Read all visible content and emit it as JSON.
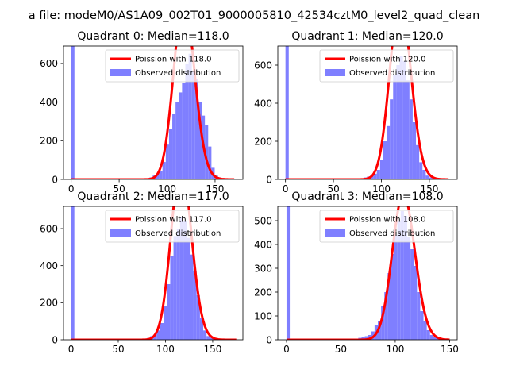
{
  "suptitle": "a file: modeM0/AS1A09_002T01_9000005810_42534cztM0_level2_quad_clean",
  "colors": {
    "poisson": "#ff0000",
    "observed": "#7f7fff",
    "axis": "#000000",
    "text": "#000000"
  },
  "chart_data": [
    {
      "type": "bar",
      "title": "Quadrant 0: Median=118.0",
      "xlim": [
        -8,
        179
      ],
      "ylim": [
        0,
        690
      ],
      "xticks": [
        0,
        50,
        100,
        150
      ],
      "yticks": [
        0,
        200,
        400,
        600
      ],
      "legend": {
        "placement": "top-right",
        "entries": [
          "Poission with 118.0",
          "Observed distribution"
        ]
      },
      "observed": {
        "name": "Observed distribution",
        "bin_start": 0,
        "bin_width": 3.4,
        "counts": [
          690,
          0,
          0,
          0,
          0,
          0,
          0,
          0,
          0,
          0,
          0,
          0,
          0,
          0,
          0,
          0,
          0,
          0,
          0,
          0,
          0,
          2,
          3,
          6,
          10,
          20,
          30,
          45,
          90,
          180,
          260,
          340,
          400,
          450,
          500,
          600,
          650,
          560,
          520,
          400,
          330,
          280,
          170,
          60,
          20,
          10,
          5,
          3,
          0,
          0
        ]
      },
      "poisson": {
        "name": "Poission with 118.0",
        "lambda": 118.0,
        "n": 7400,
        "bin_width": 3.4,
        "x_range": [
          0,
          170
        ]
      }
    },
    {
      "type": "bar",
      "title": "Quadrant 1: Median=120.0",
      "xlim": [
        -8,
        179
      ],
      "ylim": [
        0,
        700
      ],
      "xticks": [
        0,
        50,
        100,
        150
      ],
      "yticks": [
        0,
        200,
        400,
        600
      ],
      "legend": {
        "placement": "top-right",
        "entries": [
          "Poission with 120.0",
          "Observed distribution"
        ]
      },
      "observed": {
        "name": "Observed distribution",
        "bin_start": 0,
        "bin_width": 3.4,
        "counts": [
          700,
          0,
          0,
          0,
          0,
          0,
          0,
          0,
          0,
          0,
          0,
          0,
          0,
          0,
          0,
          0,
          0,
          0,
          0,
          0,
          0,
          0,
          3,
          5,
          10,
          15,
          20,
          30,
          50,
          100,
          200,
          280,
          420,
          550,
          600,
          650,
          620,
          520,
          420,
          300,
          180,
          90,
          50,
          20,
          10,
          5,
          2,
          0,
          0,
          0
        ]
      },
      "poisson": {
        "name": "Poission with 120.0",
        "lambda": 120.0,
        "n": 7600,
        "bin_width": 3.4,
        "x_range": [
          0,
          170
        ]
      }
    },
    {
      "type": "bar",
      "title": "Quadrant 2: Median=117.0",
      "xlim": [
        -8,
        182
      ],
      "ylim": [
        0,
        720
      ],
      "xticks": [
        0,
        50,
        100,
        150
      ],
      "yticks": [
        0,
        200,
        400,
        600
      ],
      "legend": {
        "placement": "top-right",
        "entries": [
          "Poission with 117.0",
          "Observed distribution"
        ]
      },
      "observed": {
        "name": "Observed distribution",
        "bin_start": 0,
        "bin_width": 3.5,
        "counts": [
          720,
          0,
          0,
          0,
          0,
          0,
          0,
          0,
          0,
          0,
          0,
          0,
          0,
          0,
          0,
          0,
          0,
          0,
          0,
          0,
          0,
          3,
          5,
          10,
          20,
          30,
          50,
          90,
          180,
          300,
          450,
          560,
          600,
          660,
          640,
          550,
          460,
          370,
          240,
          120,
          50,
          20,
          10,
          5,
          3,
          0,
          0,
          0,
          0,
          0
        ]
      },
      "poisson": {
        "name": "Poission with 117.0",
        "lambda": 117.0,
        "n": 7300,
        "bin_width": 3.5,
        "x_range": [
          0,
          175
        ]
      }
    },
    {
      "type": "bar",
      "title": "Quadrant 3: Median=108.0",
      "xlim": [
        -8,
        157
      ],
      "ylim": [
        0,
        560
      ],
      "xticks": [
        0,
        50,
        100,
        150
      ],
      "yticks": [
        0,
        100,
        200,
        300,
        400,
        500
      ],
      "legend": {
        "placement": "top-right",
        "entries": [
          "Poission with 108.0",
          "Observed distribution"
        ]
      },
      "observed": {
        "name": "Observed distribution",
        "bin_start": 0,
        "bin_width": 3.0,
        "counts": [
          560,
          0,
          0,
          0,
          0,
          0,
          0,
          0,
          0,
          0,
          0,
          0,
          0,
          0,
          0,
          0,
          0,
          0,
          0,
          0,
          0,
          5,
          8,
          12,
          15,
          20,
          35,
          60,
          80,
          140,
          200,
          280,
          360,
          440,
          500,
          540,
          520,
          430,
          380,
          310,
          200,
          120,
          80,
          40,
          20,
          10,
          5,
          0,
          0,
          0
        ]
      },
      "poisson": {
        "name": "Poission with 108.0",
        "lambda": 108.0,
        "n": 5300,
        "bin_width": 3.0,
        "x_range": [
          0,
          150
        ]
      }
    }
  ]
}
